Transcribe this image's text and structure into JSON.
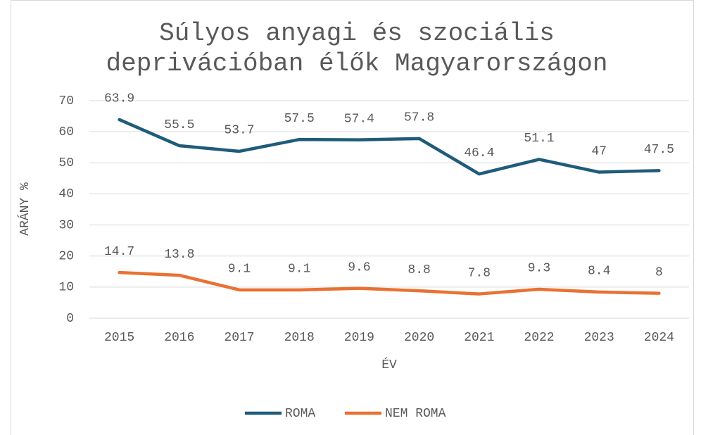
{
  "chart_data": {
    "type": "line",
    "title": "Súlyos anyagi és szociális deprivációban élők Magyarországon",
    "x_label": "ÉV",
    "y_label": "ARÁNY %",
    "categories": [
      "2015",
      "2016",
      "2017",
      "2018",
      "2019",
      "2020",
      "2021",
      "2022",
      "2023",
      "2024"
    ],
    "series": [
      {
        "name": "ROMA",
        "color": "#1f5b7a",
        "values": [
          63.9,
          55.5,
          53.7,
          57.5,
          57.4,
          57.8,
          46.4,
          51.1,
          47,
          47.5
        ]
      },
      {
        "name": "NEM ROMA",
        "color": "#e97132",
        "values": [
          14.7,
          13.8,
          9.1,
          9.1,
          9.6,
          8.8,
          7.8,
          9.3,
          8.4,
          8
        ]
      }
    ],
    "ylim": [
      0,
      70
    ],
    "yticks": [
      0,
      10,
      20,
      30,
      40,
      50,
      60,
      70
    ],
    "grid": true,
    "legend": "bottom"
  }
}
